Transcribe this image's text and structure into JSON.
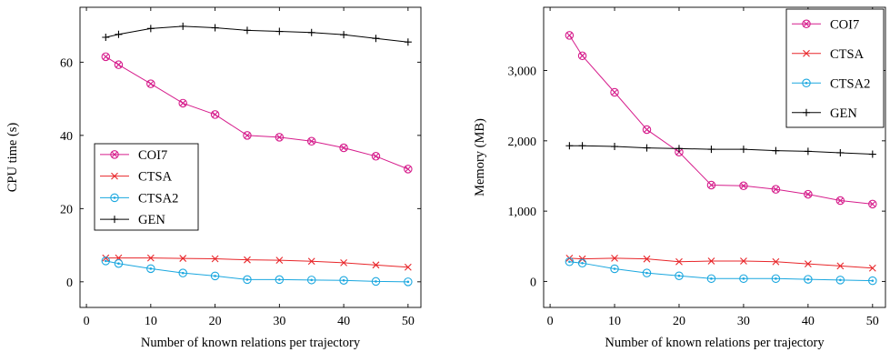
{
  "chart_data": [
    {
      "type": "line",
      "xlabel": "Number of known relations per trajectory",
      "ylabel": "CPU time (s)",
      "xlim": [
        -1,
        52
      ],
      "ylim": [
        -7,
        75
      ],
      "xticks": [
        0,
        10,
        20,
        30,
        40,
        50
      ],
      "xtick_labels": [
        "0",
        "10",
        "20",
        "30",
        "40",
        "50"
      ],
      "yticks": [
        0,
        20,
        40,
        60
      ],
      "ytick_labels": [
        "0",
        "20",
        "40",
        "60"
      ],
      "legend_position": "center-left",
      "grid": false,
      "x": [
        3,
        5,
        10,
        15,
        20,
        25,
        30,
        35,
        40,
        45,
        50
      ],
      "series": [
        {
          "name": "COI7",
          "color": "#d61d8c",
          "marker": "circle-x",
          "values": [
            61.5,
            59.3,
            54.1,
            48.8,
            45.7,
            40.0,
            39.5,
            38.4,
            36.6,
            34.3,
            30.8
          ]
        },
        {
          "name": "CTSA",
          "color": "#e8262a",
          "marker": "x",
          "values": [
            6.5,
            6.5,
            6.5,
            6.4,
            6.3,
            6.0,
            5.9,
            5.6,
            5.2,
            4.6,
            4.0
          ]
        },
        {
          "name": "CTSA2",
          "color": "#1aa7df",
          "marker": "circle-dot",
          "values": [
            5.7,
            5.0,
            3.6,
            2.4,
            1.6,
            0.6,
            0.6,
            0.5,
            0.4,
            0.1,
            0.0
          ]
        },
        {
          "name": "GEN",
          "color": "#000000",
          "marker": "plus",
          "values": [
            66.8,
            67.6,
            69.2,
            69.8,
            69.4,
            68.7,
            68.4,
            68.1,
            67.5,
            66.5,
            65.5
          ]
        }
      ]
    },
    {
      "type": "line",
      "xlabel": "Number of known relations per trajectory",
      "ylabel": "Memory (MB)",
      "xlim": [
        -1,
        52
      ],
      "ylim": [
        -370,
        3900
      ],
      "xticks": [
        0,
        10,
        20,
        30,
        40,
        50
      ],
      "xtick_labels": [
        "0",
        "10",
        "20",
        "30",
        "40",
        "50"
      ],
      "yticks": [
        0,
        1000,
        2000,
        3000
      ],
      "ytick_labels": [
        "0",
        "1,000",
        "2,000",
        "3,000"
      ],
      "legend_position": "top-right",
      "grid": false,
      "x": [
        3,
        5,
        10,
        15,
        20,
        25,
        30,
        35,
        40,
        45,
        50
      ],
      "series": [
        {
          "name": "COI7",
          "color": "#d61d8c",
          "marker": "circle-x",
          "values": [
            3500,
            3210,
            2690,
            2160,
            1840,
            1370,
            1360,
            1310,
            1240,
            1150,
            1100
          ]
        },
        {
          "name": "CTSA",
          "color": "#e8262a",
          "marker": "x",
          "values": [
            330,
            320,
            330,
            320,
            280,
            290,
            290,
            280,
            250,
            220,
            190
          ]
        },
        {
          "name": "CTSA2",
          "color": "#1aa7df",
          "marker": "circle-dot",
          "values": [
            280,
            260,
            180,
            120,
            80,
            40,
            40,
            40,
            30,
            20,
            10
          ]
        },
        {
          "name": "GEN",
          "color": "#000000",
          "marker": "plus",
          "values": [
            1930,
            1930,
            1920,
            1900,
            1890,
            1880,
            1880,
            1860,
            1850,
            1830,
            1810
          ]
        }
      ]
    }
  ]
}
